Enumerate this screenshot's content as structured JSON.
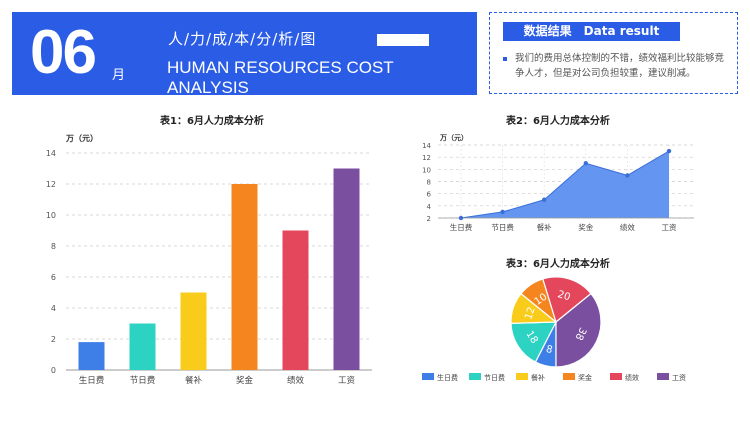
{
  "header": {
    "month_number": "06",
    "month_unit": "月",
    "title_zh": "人/力/成/本/分/析/图",
    "title_en": "HUMAN RESOURCES COST ANALYSIS",
    "banner_color": "#2b5ce6"
  },
  "result": {
    "heading": "数据结果　Data result",
    "text": "我们的费用总体控制的不错，绩效福利比较能够竞争人才，但是对公司负担较重，建议削减。"
  },
  "chart_data": [
    {
      "type": "bar",
      "title": "表1：6月人力成本分析",
      "ylabel": "万（元）",
      "categories": [
        "生日费",
        "节日费",
        "餐补",
        "奖金",
        "绩效",
        "工资"
      ],
      "values": [
        1.8,
        3,
        5,
        12,
        9,
        13
      ],
      "colors": [
        "#3d7fe6",
        "#2cd3c3",
        "#f9cc1c",
        "#f5861f",
        "#e4475c",
        "#7b4fa0"
      ],
      "ylim": [
        0,
        14
      ],
      "yticks": [
        "0",
        "2",
        "4",
        "6",
        "8",
        "10",
        "12",
        "14"
      ],
      "grid": true
    },
    {
      "type": "area",
      "title": "表2：6月人力成本分析",
      "ylabel": "万（元）",
      "categories": [
        "生日费",
        "节日费",
        "餐补",
        "奖金",
        "绩效",
        "工资"
      ],
      "values": [
        2,
        3,
        5,
        11,
        9,
        13
      ],
      "color": "#5b8ff0",
      "ylim": [
        2,
        14
      ],
      "yticks": [
        "2",
        "4",
        "6",
        "8",
        "10",
        "12",
        "14"
      ],
      "grid": true
    },
    {
      "type": "pie",
      "title": "表3：6月人力成本分析",
      "categories": [
        "生日费",
        "节日费",
        "餐补",
        "奖金",
        "绩效",
        "工资"
      ],
      "values": [
        8,
        18,
        12,
        10,
        20,
        38
      ],
      "colors": [
        "#3d7fe6",
        "#2cd3c3",
        "#f9cc1c",
        "#f5861f",
        "#e4475c",
        "#7b4fa0"
      ],
      "legend": "bottom"
    }
  ]
}
